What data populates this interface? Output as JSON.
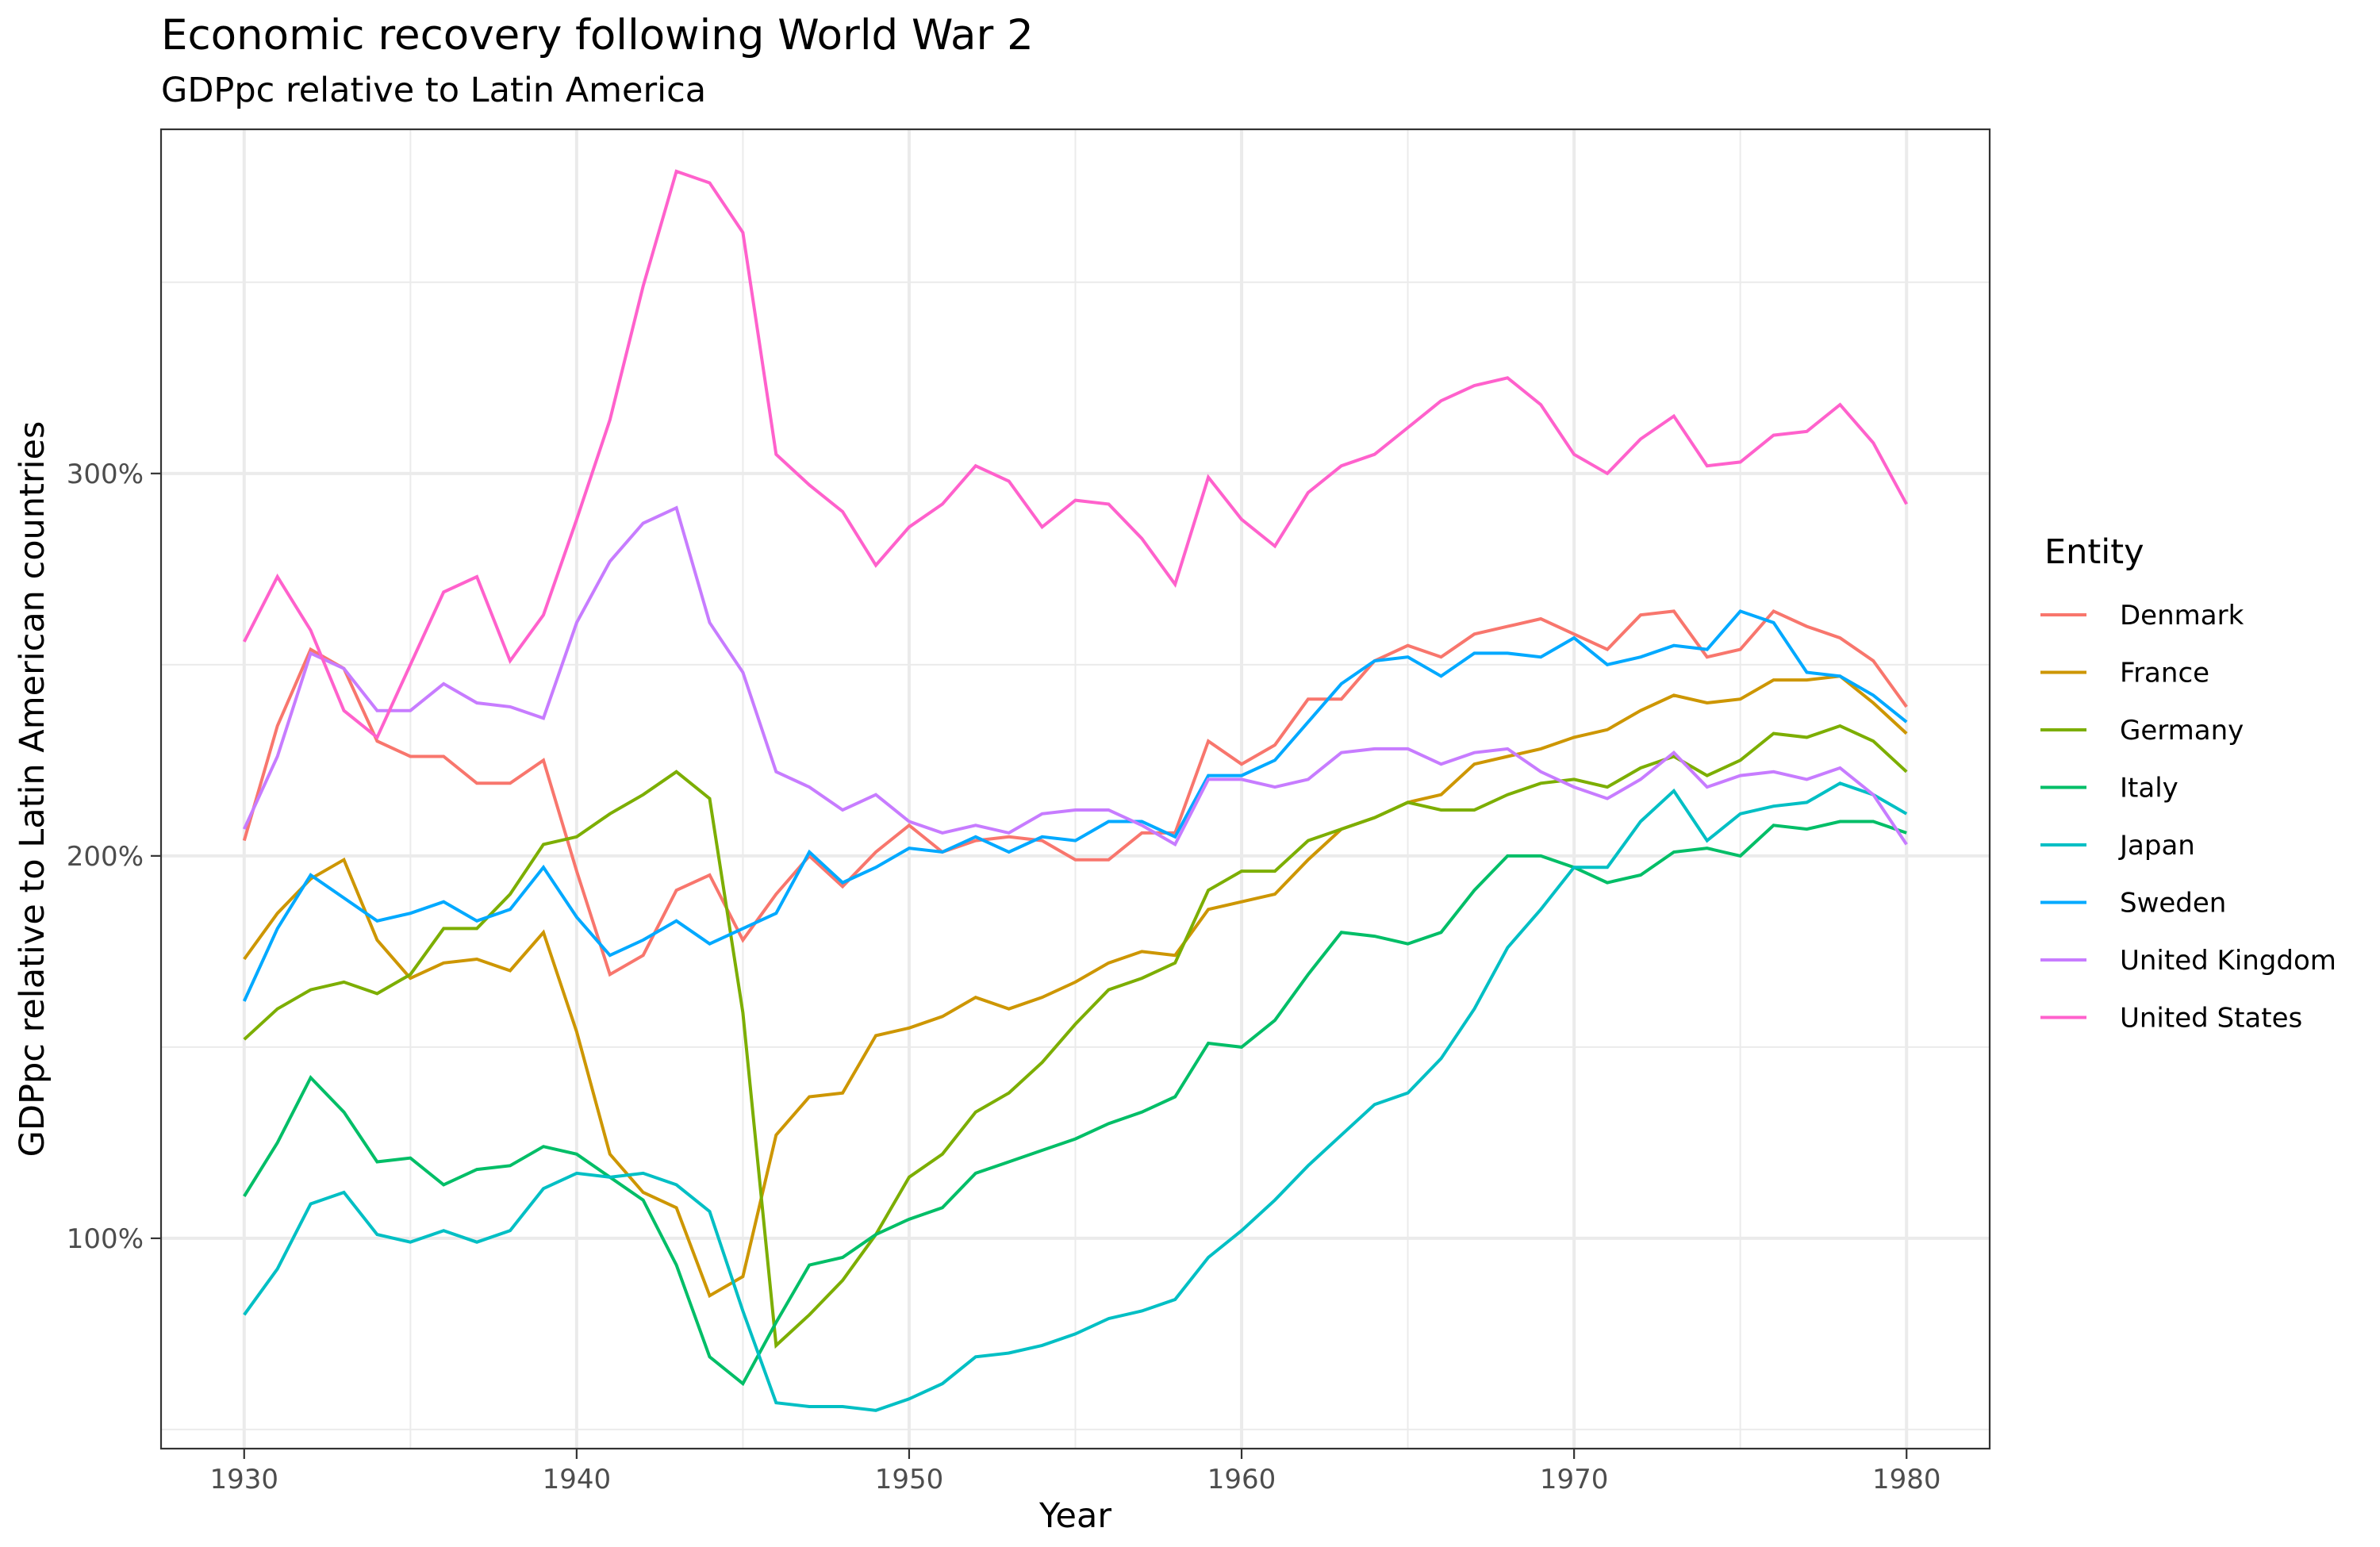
{
  "chart_data": {
    "type": "line",
    "title": "Economic recovery following World War 2",
    "subtitle": "GDPpc relative to Latin America",
    "xlabel": "Year",
    "ylabel": "GDPpc relative to Latin American countries",
    "xlim": [
      1927.5,
      1982.5
    ],
    "ylim": [
      45,
      390
    ],
    "x_ticks": [
      1930,
      1940,
      1950,
      1960,
      1970,
      1980
    ],
    "x_tick_labels": [
      "1930",
      "1940",
      "1950",
      "1960",
      "1970",
      "1980"
    ],
    "y_ticks": [
      100,
      200,
      300
    ],
    "y_tick_labels": [
      "100%",
      "200%",
      "300%"
    ],
    "y_minor_ticks": [
      50,
      150,
      250,
      350
    ],
    "grid": true,
    "legend": {
      "title": "Entity",
      "position": "right"
    },
    "x": [
      1930,
      1931,
      1932,
      1933,
      1934,
      1935,
      1936,
      1937,
      1938,
      1939,
      1940,
      1941,
      1942,
      1943,
      1944,
      1945,
      1946,
      1947,
      1948,
      1949,
      1950,
      1951,
      1952,
      1953,
      1954,
      1955,
      1956,
      1957,
      1958,
      1959,
      1960,
      1961,
      1962,
      1963,
      1964,
      1965,
      1966,
      1967,
      1968,
      1969,
      1970,
      1971,
      1972,
      1973,
      1974,
      1975,
      1976,
      1977,
      1978,
      1979,
      1980
    ],
    "series": [
      {
        "name": "Denmark",
        "color": "#F8766D",
        "values": [
          204,
          234,
          254,
          249,
          230,
          226,
          226,
          219,
          219,
          225,
          196,
          169,
          174,
          191,
          195,
          178,
          190,
          200,
          192,
          201,
          208,
          201,
          204,
          205,
          204,
          199,
          199,
          206,
          206,
          230,
          224,
          229,
          241,
          241,
          251,
          255,
          252,
          258,
          260,
          262,
          258,
          254,
          263,
          264,
          252,
          254,
          264,
          260,
          257,
          251,
          239
        ]
      },
      {
        "name": "France",
        "color": "#CD9600",
        "values": [
          173,
          185,
          194,
          199,
          178,
          168,
          172,
          173,
          170,
          180,
          154,
          122,
          112,
          108,
          85,
          90,
          127,
          137,
          138,
          153,
          155,
          158,
          163,
          160,
          163,
          167,
          172,
          175,
          174,
          186,
          188,
          190,
          199,
          207,
          210,
          214,
          216,
          224,
          226,
          228,
          231,
          233,
          238,
          242,
          240,
          241,
          246,
          246,
          247,
          240,
          232
        ]
      },
      {
        "name": "Germany",
        "color": "#7CAE00",
        "values": [
          152,
          160,
          165,
          167,
          164,
          169,
          181,
          181,
          190,
          203,
          205,
          211,
          216,
          222,
          215,
          159,
          72,
          80,
          89,
          101,
          116,
          122,
          133,
          138,
          146,
          156,
          165,
          168,
          172,
          191,
          196,
          196,
          204,
          207,
          210,
          214,
          212,
          212,
          216,
          219,
          220,
          218,
          223,
          226,
          221,
          225,
          232,
          231,
          234,
          230,
          222
        ]
      },
      {
        "name": "Italy",
        "color": "#00BE67",
        "values": [
          111,
          125,
          142,
          133,
          120,
          121,
          114,
          118,
          119,
          124,
          122,
          116,
          110,
          93,
          69,
          62,
          78,
          93,
          95,
          101,
          105,
          108,
          117,
          120,
          123,
          126,
          130,
          133,
          137,
          151,
          150,
          157,
          169,
          180,
          179,
          177,
          180,
          191,
          200,
          200,
          197,
          193,
          195,
          201,
          202,
          200,
          208,
          207,
          209,
          209,
          206
        ]
      },
      {
        "name": "Japan",
        "color": "#00BFC4",
        "values": [
          80,
          92,
          109,
          112,
          101,
          99,
          102,
          99,
          102,
          113,
          117,
          116,
          117,
          114,
          107,
          81,
          57,
          56,
          56,
          55,
          58,
          62,
          69,
          70,
          72,
          75,
          79,
          81,
          84,
          95,
          102,
          110,
          119,
          127,
          135,
          138,
          147,
          160,
          176,
          186,
          197,
          197,
          209,
          217,
          204,
          211,
          213,
          214,
          219,
          216,
          211
        ]
      },
      {
        "name": "Sweden",
        "color": "#00A9FF",
        "values": [
          162,
          181,
          195,
          189,
          183,
          185,
          188,
          183,
          186,
          197,
          184,
          174,
          178,
          183,
          177,
          181,
          185,
          201,
          193,
          197,
          202,
          201,
          205,
          201,
          205,
          204,
          209,
          209,
          205,
          221,
          221,
          225,
          235,
          245,
          251,
          252,
          247,
          253,
          253,
          252,
          257,
          250,
          252,
          255,
          254,
          264,
          261,
          248,
          247,
          242,
          235
        ]
      },
      {
        "name": "United Kingdom",
        "color": "#C77CFF",
        "values": [
          207,
          226,
          253,
          249,
          238,
          238,
          245,
          240,
          239,
          236,
          261,
          277,
          287,
          291,
          261,
          248,
          222,
          218,
          212,
          216,
          209,
          206,
          208,
          206,
          211,
          212,
          212,
          208,
          203,
          220,
          220,
          218,
          220,
          227,
          228,
          228,
          224,
          227,
          228,
          222,
          218,
          215,
          220,
          227,
          218,
          221,
          222,
          220,
          223,
          216,
          203
        ]
      },
      {
        "name": "United States",
        "color": "#FF61CC",
        "values": [
          256,
          273,
          259,
          238,
          231,
          250,
          269,
          273,
          251,
          263,
          288,
          314,
          349,
          379,
          376,
          363,
          305,
          297,
          290,
          276,
          286,
          292,
          302,
          298,
          286,
          293,
          292,
          283,
          271,
          299,
          288,
          281,
          295,
          302,
          305,
          312,
          319,
          323,
          325,
          318,
          305,
          300,
          309,
          315,
          302,
          303,
          310,
          311,
          318,
          308,
          292
        ]
      }
    ]
  }
}
